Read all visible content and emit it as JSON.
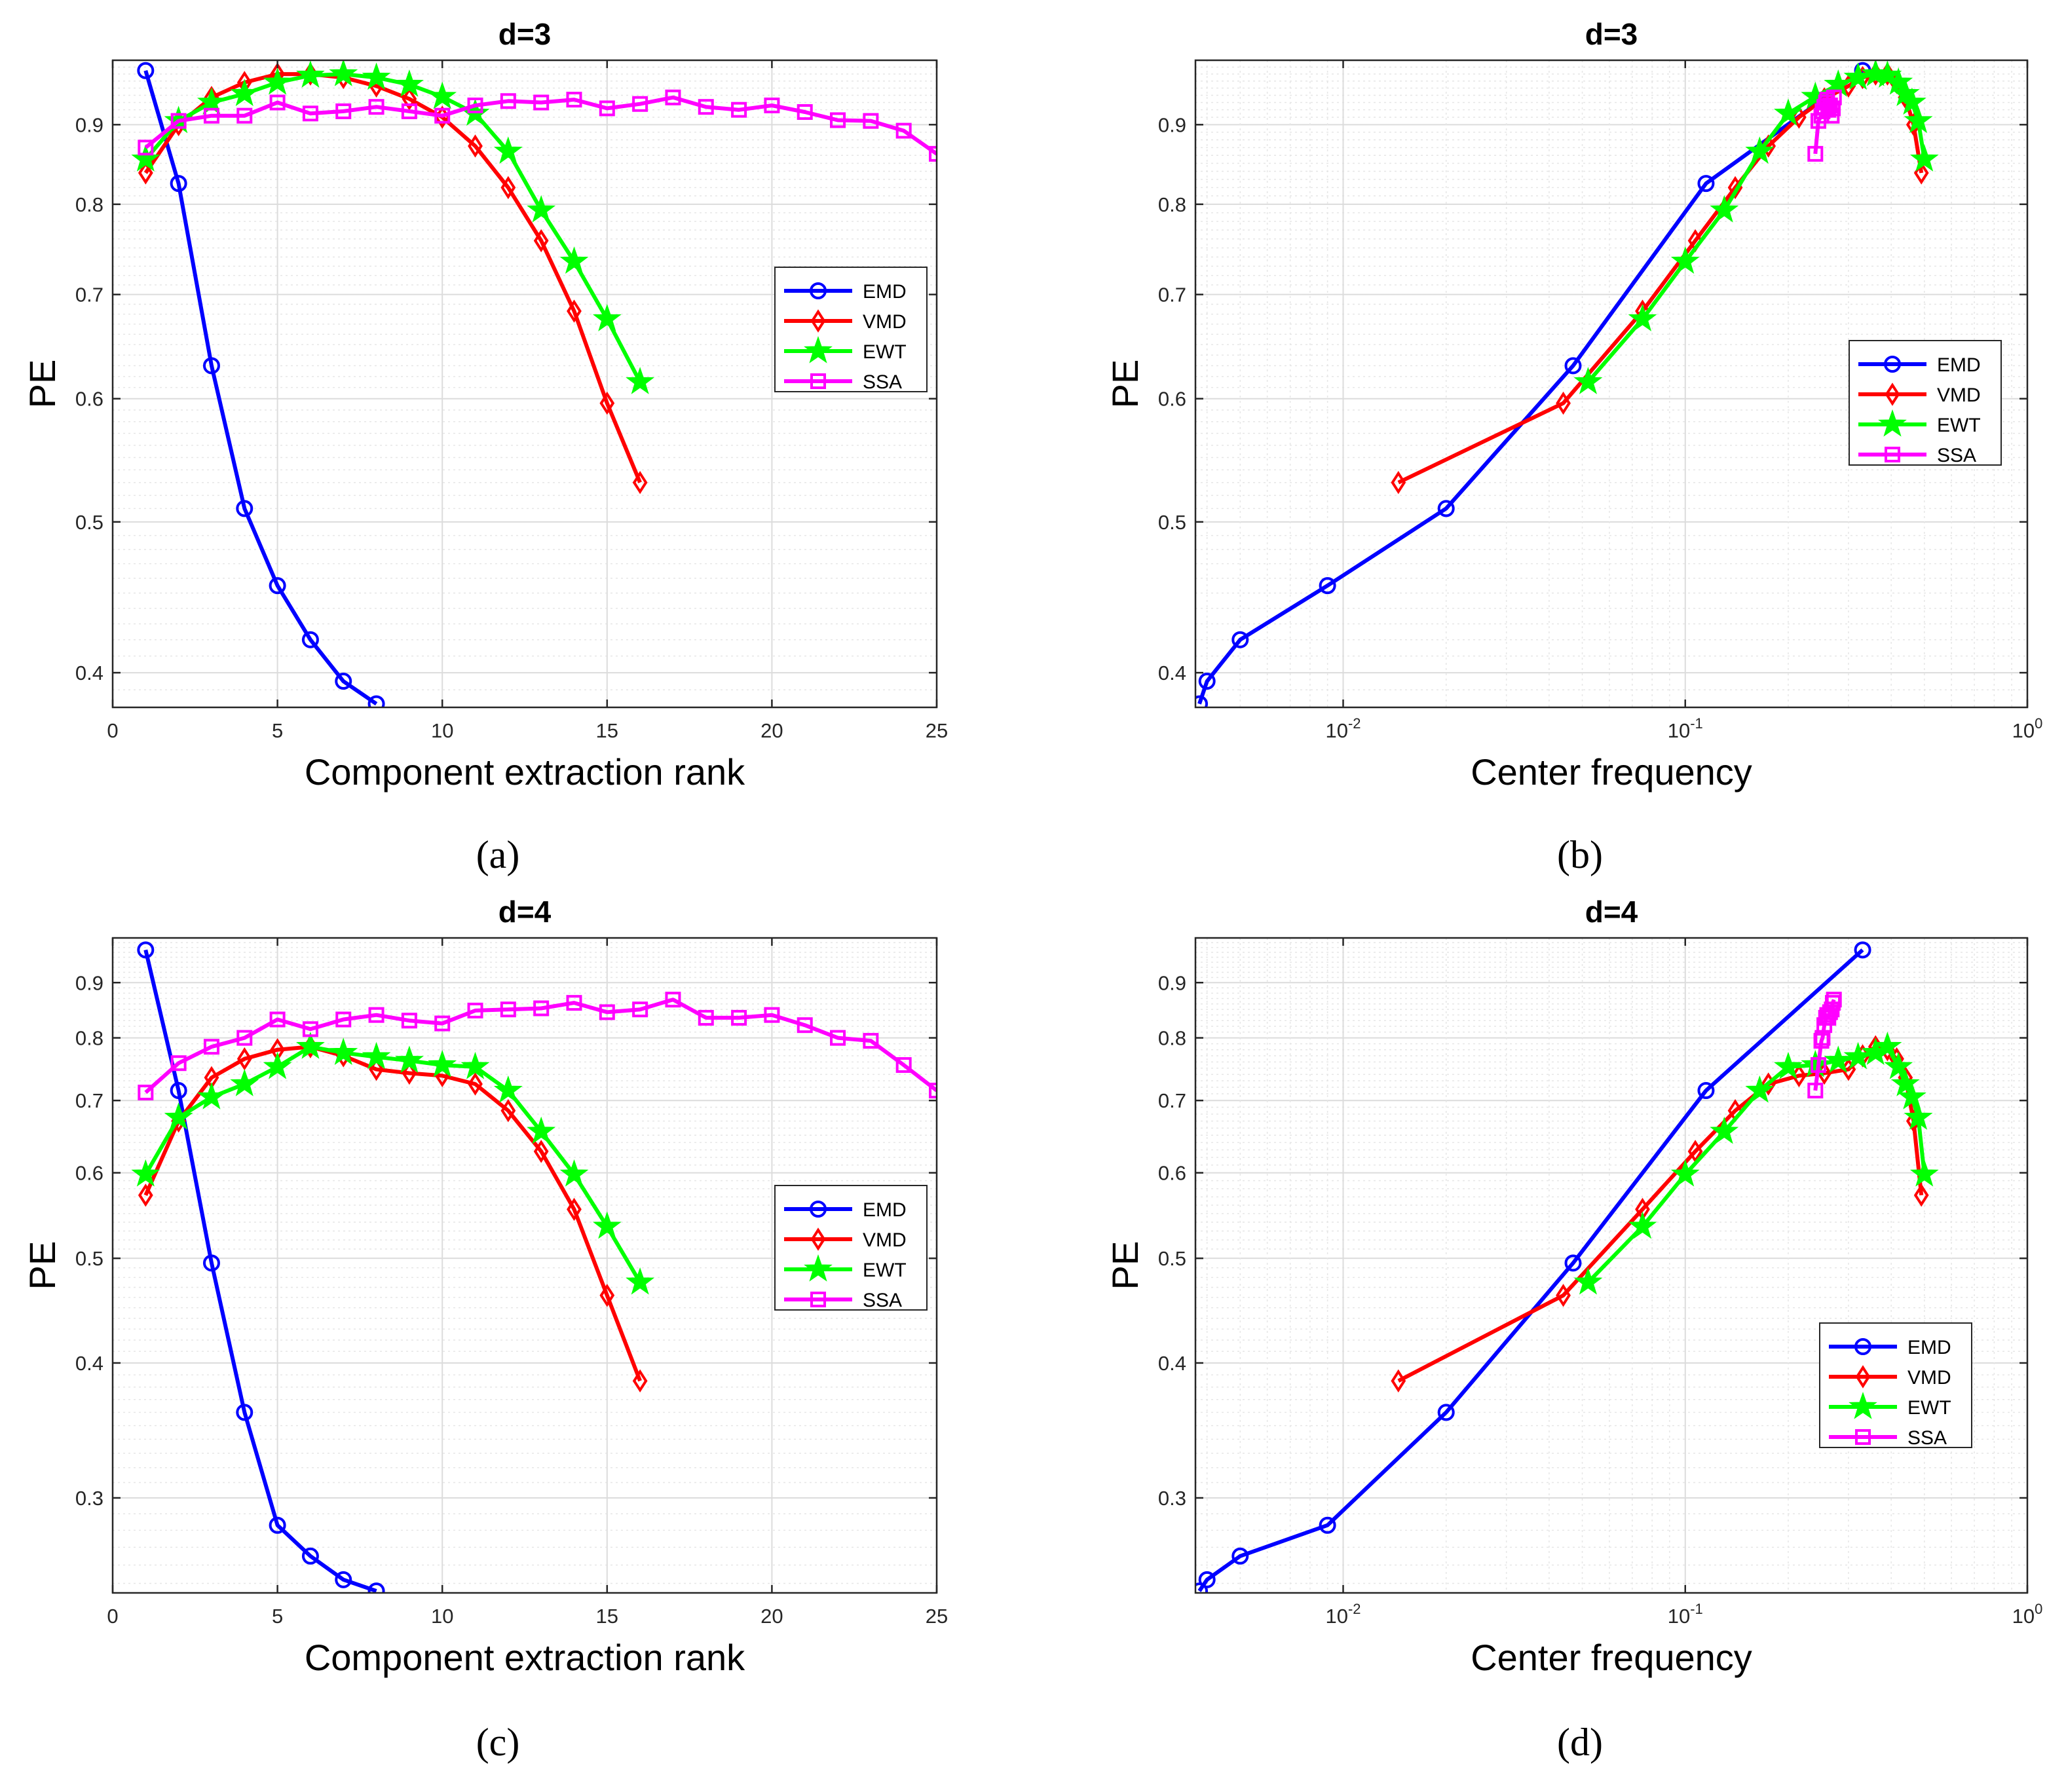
{
  "colors": {
    "EMD": "#0000ff",
    "VMD": "#ff0000",
    "EWT": "#00ff00",
    "SSA": "#ff00ff",
    "grid": "#dcdcdc",
    "axis": "#262626"
  },
  "chart_data": [
    {
      "panel": "a",
      "type": "line",
      "caption": "(a)",
      "title": "d=3",
      "xlabel": "Component extraction rank",
      "ylabel": "PE",
      "xscale": "linear",
      "yscale": "log",
      "xlim": [
        0,
        25
      ],
      "ylim": [
        0.38,
        0.99
      ],
      "xticks": [
        0,
        5,
        10,
        15,
        20,
        25
      ],
      "xtick_labels": [
        "0",
        "5",
        "10",
        "15",
        "20",
        "25"
      ],
      "yticks": [
        0.4,
        0.5,
        0.6,
        0.7,
        0.8,
        0.9
      ],
      "ytick_labels": [
        "0.4",
        "0.5",
        "0.6",
        "0.7",
        "0.8",
        "0.9"
      ],
      "grid": true,
      "legend_position": "right",
      "series": [
        {
          "name": "EMD",
          "marker": "circle",
          "x": [
            1,
            2,
            3,
            4,
            5,
            6,
            7,
            8
          ],
          "y": [
            0.975,
            0.825,
            0.63,
            0.51,
            0.455,
            0.42,
            0.395,
            0.382
          ]
        },
        {
          "name": "VMD",
          "marker": "diamond",
          "x": [
            1,
            2,
            3,
            4,
            5,
            6,
            7,
            8,
            9,
            10,
            11,
            12,
            13,
            14,
            15,
            16
          ],
          "y": [
            0.838,
            0.9,
            0.937,
            0.958,
            0.97,
            0.97,
            0.965,
            0.953,
            0.935,
            0.91,
            0.872,
            0.82,
            0.758,
            0.683,
            0.596,
            0.53
          ]
        },
        {
          "name": "EWT",
          "marker": "star",
          "x": [
            1,
            2,
            3,
            4,
            5,
            6,
            7,
            8,
            9,
            10,
            11,
            12,
            13,
            14,
            15,
            16
          ],
          "y": [
            0.855,
            0.905,
            0.93,
            0.942,
            0.958,
            0.968,
            0.97,
            0.965,
            0.955,
            0.938,
            0.915,
            0.865,
            0.793,
            0.735,
            0.675,
            0.615
          ]
        },
        {
          "name": "SSA",
          "marker": "square",
          "x": [
            1,
            2,
            3,
            4,
            5,
            6,
            7,
            8,
            9,
            10,
            11,
            12,
            13,
            14,
            15,
            16,
            17,
            18,
            19,
            20,
            21,
            22,
            23,
            24,
            25
          ],
          "y": [
            0.87,
            0.905,
            0.912,
            0.912,
            0.93,
            0.915,
            0.918,
            0.924,
            0.918,
            0.912,
            0.926,
            0.932,
            0.93,
            0.934,
            0.922,
            0.928,
            0.937,
            0.924,
            0.92,
            0.926,
            0.917,
            0.906,
            0.905,
            0.892,
            0.862
          ]
        }
      ]
    },
    {
      "panel": "b",
      "type": "line",
      "caption": "(b)",
      "title": "d=3",
      "xlabel": "Center  frequency",
      "ylabel": "PE",
      "xscale": "log",
      "yscale": "log",
      "xlim": [
        0.0037,
        1
      ],
      "ylim": [
        0.38,
        0.99
      ],
      "xticks": [
        0.01,
        0.1,
        1
      ],
      "xtick_labels": [
        "10",
        "10",
        "10"
      ],
      "xtick_exponents": [
        "-2",
        "-1",
        "0"
      ],
      "yticks": [
        0.4,
        0.5,
        0.6,
        0.7,
        0.8,
        0.9
      ],
      "ytick_labels": [
        "0.4",
        "0.5",
        "0.6",
        "0.7",
        "0.8",
        "0.9"
      ],
      "grid": true,
      "minor_grid": true,
      "legend_position": "right",
      "series": [
        {
          "name": "EMD",
          "marker": "circle",
          "x": [
            0.0038,
            0.004,
            0.005,
            0.009,
            0.02,
            0.047,
            0.115,
            0.33
          ],
          "y": [
            0.382,
            0.395,
            0.42,
            0.455,
            0.51,
            0.63,
            0.825,
            0.975
          ]
        },
        {
          "name": "VMD",
          "marker": "diamond",
          "x": [
            0.0145,
            0.044,
            0.075,
            0.107,
            0.14,
            0.175,
            0.215,
            0.255,
            0.3,
            0.33,
            0.36,
            0.39,
            0.415,
            0.44,
            0.465,
            0.49
          ],
          "y": [
            0.53,
            0.596,
            0.683,
            0.758,
            0.82,
            0.872,
            0.91,
            0.935,
            0.953,
            0.965,
            0.97,
            0.97,
            0.958,
            0.937,
            0.9,
            0.838
          ]
        },
        {
          "name": "EWT",
          "marker": "star",
          "x": [
            0.052,
            0.075,
            0.1,
            0.13,
            0.165,
            0.2,
            0.24,
            0.28,
            0.32,
            0.36,
            0.39,
            0.42,
            0.44,
            0.46,
            0.48,
            0.5
          ],
          "y": [
            0.615,
            0.675,
            0.735,
            0.793,
            0.865,
            0.915,
            0.938,
            0.955,
            0.965,
            0.97,
            0.968,
            0.958,
            0.942,
            0.93,
            0.905,
            0.855
          ]
        },
        {
          "name": "SSA",
          "marker": "square",
          "x": [
            0.24,
            0.245,
            0.25,
            0.252,
            0.255,
            0.258,
            0.26,
            0.262,
            0.265,
            0.268,
            0.27,
            0.272
          ],
          "y": [
            0.862,
            0.905,
            0.912,
            0.918,
            0.924,
            0.93,
            0.934,
            0.92,
            0.926,
            0.912,
            0.922,
            0.937
          ]
        }
      ]
    },
    {
      "panel": "c",
      "type": "line",
      "caption": "(c)",
      "title": "d=4",
      "xlabel": "Component extraction rank",
      "ylabel": "PE",
      "xscale": "linear",
      "yscale": "log",
      "xlim": [
        0,
        25
      ],
      "ylim": [
        0.245,
        0.99
      ],
      "xticks": [
        0,
        5,
        10,
        15,
        20,
        25
      ],
      "xtick_labels": [
        "0",
        "5",
        "10",
        "15",
        "20",
        "25"
      ],
      "yticks": [
        0.3,
        0.4,
        0.5,
        0.6,
        0.7,
        0.8,
        0.9
      ],
      "ytick_labels": [
        "0.3",
        "0.4",
        "0.5",
        "0.6",
        "0.7",
        "0.8",
        "0.9"
      ],
      "grid": true,
      "legend_position": "right",
      "series": [
        {
          "name": "EMD",
          "marker": "circle",
          "x": [
            1,
            2,
            3,
            4,
            5,
            6,
            7,
            8
          ],
          "y": [
            0.965,
            0.715,
            0.495,
            0.36,
            0.283,
            0.265,
            0.252,
            0.246
          ]
        },
        {
          "name": "VMD",
          "marker": "diamond",
          "x": [
            1,
            2,
            3,
            4,
            5,
            6,
            7,
            8,
            9,
            10,
            11,
            12,
            13,
            14,
            15,
            16
          ],
          "y": [
            0.572,
            0.67,
            0.735,
            0.765,
            0.78,
            0.785,
            0.77,
            0.748,
            0.742,
            0.738,
            0.725,
            0.685,
            0.628,
            0.555,
            0.462,
            0.385
          ]
        },
        {
          "name": "EWT",
          "marker": "star",
          "x": [
            1,
            2,
            3,
            4,
            5,
            6,
            7,
            8,
            9,
            10,
            11,
            12,
            13,
            14,
            15,
            16
          ],
          "y": [
            0.598,
            0.675,
            0.705,
            0.725,
            0.752,
            0.785,
            0.775,
            0.768,
            0.762,
            0.755,
            0.752,
            0.715,
            0.655,
            0.598,
            0.535,
            0.475
          ]
        },
        {
          "name": "SSA",
          "marker": "square",
          "x": [
            1,
            2,
            3,
            4,
            5,
            6,
            7,
            8,
            9,
            10,
            11,
            12,
            13,
            14,
            15,
            16,
            17,
            18,
            19,
            20,
            21,
            22,
            23,
            24,
            25
          ],
          "y": [
            0.712,
            0.758,
            0.785,
            0.8,
            0.832,
            0.815,
            0.832,
            0.84,
            0.83,
            0.825,
            0.848,
            0.85,
            0.852,
            0.862,
            0.845,
            0.85,
            0.868,
            0.835,
            0.835,
            0.84,
            0.822,
            0.8,
            0.795,
            0.755,
            0.715
          ]
        }
      ]
    },
    {
      "panel": "d",
      "type": "line",
      "caption": "(d)",
      "title": "d=4",
      "xlabel": "Center  frequency",
      "ylabel": "PE",
      "xscale": "log",
      "yscale": "log",
      "xlim": [
        0.0037,
        1
      ],
      "ylim": [
        0.245,
        0.99
      ],
      "xticks": [
        0.01,
        0.1,
        1
      ],
      "xtick_labels": [
        "10",
        "10",
        "10"
      ],
      "xtick_exponents": [
        "-2",
        "-1",
        "0"
      ],
      "yticks": [
        0.3,
        0.4,
        0.5,
        0.6,
        0.7,
        0.8,
        0.9
      ],
      "ytick_labels": [
        "0.3",
        "0.4",
        "0.5",
        "0.6",
        "0.7",
        "0.8",
        "0.9"
      ],
      "grid": true,
      "minor_grid": true,
      "legend_position": "right",
      "series": [
        {
          "name": "EMD",
          "marker": "circle",
          "x": [
            0.0038,
            0.004,
            0.005,
            0.009,
            0.02,
            0.047,
            0.115,
            0.33
          ],
          "y": [
            0.246,
            0.252,
            0.265,
            0.283,
            0.36,
            0.495,
            0.715,
            0.965
          ]
        },
        {
          "name": "VMD",
          "marker": "diamond",
          "x": [
            0.0145,
            0.044,
            0.075,
            0.107,
            0.14,
            0.175,
            0.215,
            0.255,
            0.3,
            0.33,
            0.36,
            0.39,
            0.415,
            0.44,
            0.465,
            0.49
          ],
          "y": [
            0.385,
            0.462,
            0.555,
            0.628,
            0.685,
            0.725,
            0.738,
            0.742,
            0.748,
            0.77,
            0.785,
            0.78,
            0.765,
            0.735,
            0.67,
            0.572
          ]
        },
        {
          "name": "EWT",
          "marker": "star",
          "x": [
            0.052,
            0.075,
            0.1,
            0.13,
            0.165,
            0.2,
            0.24,
            0.28,
            0.32,
            0.36,
            0.39,
            0.42,
            0.44,
            0.46,
            0.48,
            0.5
          ],
          "y": [
            0.475,
            0.535,
            0.598,
            0.655,
            0.715,
            0.752,
            0.755,
            0.762,
            0.768,
            0.775,
            0.785,
            0.752,
            0.725,
            0.705,
            0.675,
            0.598
          ]
        },
        {
          "name": "SSA",
          "marker": "square",
          "x": [
            0.24,
            0.245,
            0.25,
            0.252,
            0.255,
            0.258,
            0.26,
            0.262,
            0.265,
            0.268,
            0.27,
            0.272
          ],
          "y": [
            0.715,
            0.755,
            0.795,
            0.8,
            0.822,
            0.835,
            0.84,
            0.835,
            0.845,
            0.85,
            0.862,
            0.868
          ]
        }
      ]
    }
  ]
}
